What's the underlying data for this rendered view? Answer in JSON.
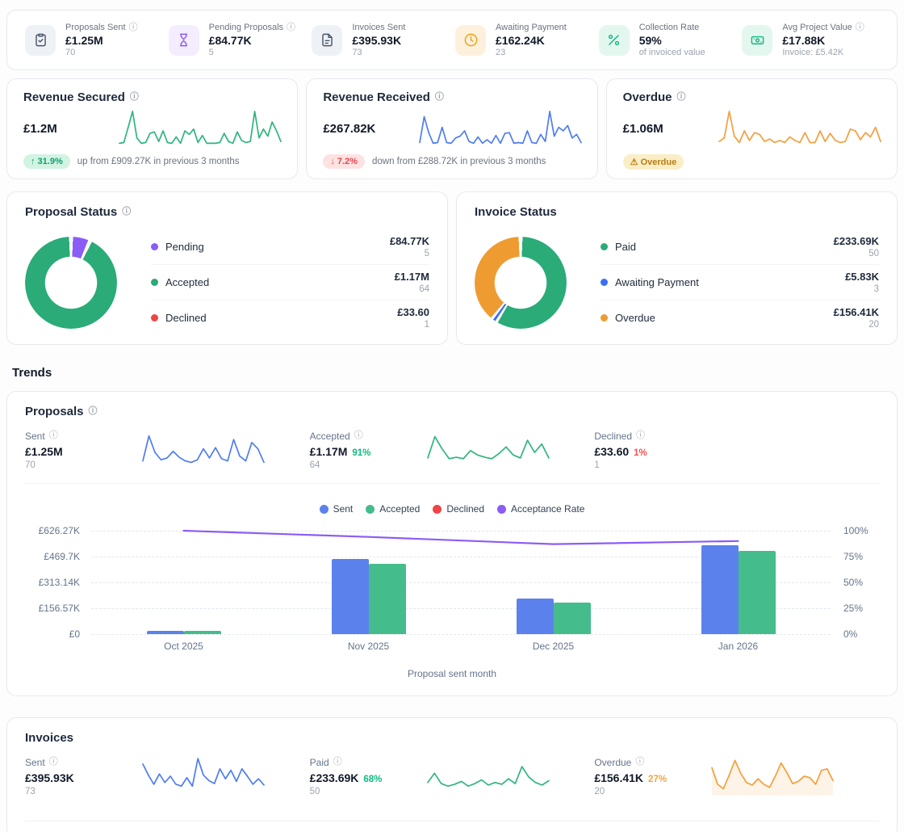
{
  "stats": [
    {
      "label": "Proposals Sent",
      "has_info": true,
      "value": "£1.25M",
      "sub": "70",
      "icon": "clipboard-check-icon",
      "icon_color": "#475569",
      "icon_bg": "#eef2f6"
    },
    {
      "label": "Pending Proposals",
      "has_info": true,
      "value": "£84.77K",
      "sub": "5",
      "icon": "hourglass-icon",
      "icon_color": "#8b5cf6",
      "icon_bg": "#f4edfe"
    },
    {
      "label": "Invoices Sent",
      "has_info": false,
      "value": "£395.93K",
      "sub": "73",
      "icon": "file-icon",
      "icon_color": "#475569",
      "icon_bg": "#eef2f6"
    },
    {
      "label": "Awaiting Payment",
      "has_info": false,
      "value": "£162.24K",
      "sub": "23",
      "icon": "clock-icon",
      "icon_color": "#f59e0b",
      "icon_bg": "#fdf1dd"
    },
    {
      "label": "Collection Rate",
      "has_info": false,
      "value": "59%",
      "sub": "of invoiced value",
      "icon": "percent-icon",
      "icon_color": "#10b981",
      "icon_bg": "#e3f7ef"
    },
    {
      "label": "Avg Project Value",
      "has_info": true,
      "value": "£17.88K",
      "sub": "Invoice: £5.42K",
      "icon": "banknote-icon",
      "icon_color": "#10b981",
      "icon_bg": "#e3f7ef"
    }
  ],
  "revenue_cards": [
    {
      "title": "Revenue Secured",
      "value": "£1.2M",
      "badge": {
        "text": "↑ 31.9%",
        "type": "up"
      },
      "note": "up from £909.27K in previous 3 months",
      "spark": "rev_secured"
    },
    {
      "title": "Revenue Received",
      "value": "£267.82K",
      "badge": {
        "text": "↓ 7.2%",
        "type": "down"
      },
      "note": "down from £288.72K in previous 3 months",
      "spark": "rev_received"
    },
    {
      "title": "Overdue",
      "value": "£1.06M",
      "badge": {
        "text": "⚠ Overdue",
        "type": "warn"
      },
      "note": "",
      "spark": "overdue"
    }
  ],
  "status_cards": [
    {
      "title": "Proposal Status",
      "has_info": true,
      "segments": [
        {
          "label": "Pending",
          "color": "#8b5cf6",
          "value": "£84.77K",
          "count": "5",
          "pct": 6.8
        },
        {
          "label": "Accepted",
          "color": "#2aab77",
          "value": "£1.17M",
          "count": "64",
          "pct": 93.2
        },
        {
          "label": "Declined",
          "color": "#ef4444",
          "value": "£33.60",
          "count": "1",
          "pct": 0
        }
      ]
    },
    {
      "title": "Invoice Status",
      "has_info": false,
      "segments": [
        {
          "label": "Paid",
          "color": "#2aab77",
          "value": "£233.69K",
          "count": "50",
          "pct": 59
        },
        {
          "label": "Awaiting Payment",
          "color": "#3b6ef6",
          "value": "£5.83K",
          "count": "3",
          "pct": 1.5
        },
        {
          "label": "Overdue",
          "color": "#ee9b31",
          "value": "£156.41K",
          "count": "20",
          "pct": 39.5
        }
      ]
    }
  ],
  "trends": {
    "heading": "Trends",
    "proposals": {
      "title": "Proposals",
      "stats": [
        {
          "label": "Sent",
          "value": "£1.25M",
          "pct": "",
          "pct_tone": "",
          "count": "70",
          "spark": "prop_sent"
        },
        {
          "label": "Accepted",
          "value": "£1.17M",
          "pct": "91%",
          "pct_tone": "green",
          "count": "64",
          "spark": "prop_accepted"
        },
        {
          "label": "Declined",
          "value": "£33.60",
          "pct": "1%",
          "pct_tone": "red",
          "count": "1",
          "spark": ""
        }
      ]
    },
    "invoices": {
      "title": "Invoices",
      "stats": [
        {
          "label": "Sent",
          "value": "£395.93K",
          "pct": "",
          "pct_tone": "",
          "count": "73",
          "spark": "inv_sent"
        },
        {
          "label": "Paid",
          "value": "£233.69K",
          "pct": "68%",
          "pct_tone": "green",
          "count": "50",
          "spark": "inv_paid"
        },
        {
          "label": "Overdue",
          "value": "£156.41K",
          "pct": "27%",
          "pct_tone": "orange",
          "count": "20",
          "spark": "inv_overdue"
        }
      ]
    }
  },
  "chart_data": {
    "type": "bar",
    "categories": [
      "Oct 2025",
      "Nov 2025",
      "Dec 2025",
      "Jan 2026"
    ],
    "series": [
      {
        "name": "Sent",
        "color": "#5b82ec",
        "values": [
          20500,
          457000,
          214000,
          540000
        ]
      },
      {
        "name": "Accepted",
        "color": "#45bc8b",
        "values": [
          18000,
          428000,
          191000,
          506000
        ]
      },
      {
        "name": "Declined",
        "color": "#ef4444",
        "values": [
          34,
          0,
          0,
          0
        ]
      },
      {
        "name": "Acceptance Rate",
        "color": "#8b5cf6",
        "axis": "right",
        "values": [
          100,
          94,
          87,
          90
        ]
      }
    ],
    "legend": [
      "Sent",
      "Accepted",
      "Declined",
      "Acceptance Rate"
    ],
    "left_ticks": [
      "£626.27K",
      "£469.7K",
      "£313.14K",
      "£156.57K",
      "£0"
    ],
    "right_ticks": [
      "100%",
      "75%",
      "50%",
      "25%",
      "0%"
    ],
    "ylim": [
      0,
      626270
    ],
    "ylim_right": [
      0,
      100
    ],
    "xlabel": "Proposal sent month",
    "grid": true,
    "legend_position": "top-center"
  },
  "sparklines": {
    "rev_secured": {
      "color": "#2eb57d",
      "points": [
        0.1,
        0.12,
        0.55,
        1.0,
        0.25,
        0.1,
        0.12,
        0.38,
        0.42,
        0.15,
        0.45,
        0.12,
        0.1,
        0.28,
        0.1,
        0.45,
        0.35,
        0.5,
        0.12,
        0.32,
        0.1,
        0.1,
        0.1,
        0.12,
        0.38,
        0.15,
        0.1,
        0.42,
        0.18,
        0.12,
        0.15,
        1.0,
        0.25,
        0.5,
        0.3,
        0.7,
        0.45,
        0.15
      ]
    },
    "rev_received": {
      "color": "#4f7cf0",
      "points": [
        0.12,
        0.85,
        0.4,
        0.1,
        0.12,
        0.55,
        0.12,
        0.1,
        0.25,
        0.3,
        0.45,
        0.15,
        0.1,
        0.28,
        0.1,
        0.2,
        0.1,
        0.32,
        0.1,
        0.38,
        0.4,
        0.1,
        0.12,
        0.1,
        0.45,
        0.12,
        0.1,
        0.35,
        0.15,
        1.0,
        0.3,
        0.55,
        0.45,
        0.6,
        0.25,
        0.35,
        0.12
      ]
    },
    "overdue": {
      "color": "#f59e3c",
      "points": [
        0.15,
        0.25,
        1.0,
        0.3,
        0.12,
        0.45,
        0.18,
        0.4,
        0.35,
        0.15,
        0.22,
        0.12,
        0.18,
        0.12,
        0.28,
        0.18,
        0.12,
        0.4,
        0.12,
        0.12,
        0.45,
        0.15,
        0.38,
        0.18,
        0.12,
        0.15,
        0.5,
        0.45,
        0.2,
        0.4,
        0.28,
        0.55,
        0.15
      ]
    },
    "prop_sent": {
      "color": "#4f7cf0",
      "points": [
        0.22,
        0.9,
        0.45,
        0.25,
        0.3,
        0.48,
        0.32,
        0.22,
        0.18,
        0.25,
        0.55,
        0.3,
        0.58,
        0.28,
        0.22,
        0.8,
        0.35,
        0.22,
        0.72,
        0.55,
        0.18
      ]
    },
    "prop_accepted": {
      "color": "#2eb57d",
      "points": [
        0.3,
        0.88,
        0.55,
        0.28,
        0.32,
        0.28,
        0.5,
        0.38,
        0.32,
        0.28,
        0.42,
        0.6,
        0.38,
        0.3,
        0.78,
        0.45,
        0.68,
        0.3
      ]
    },
    "inv_sent": {
      "color": "#4f7cf0",
      "points": [
        0.85,
        0.55,
        0.3,
        0.58,
        0.35,
        0.52,
        0.3,
        0.25,
        0.48,
        0.25,
        1.0,
        0.55,
        0.4,
        0.32,
        0.72,
        0.45,
        0.68,
        0.38,
        0.72,
        0.52,
        0.3,
        0.45,
        0.28
      ]
    },
    "inv_paid": {
      "color": "#2eb57d",
      "points": [
        0.35,
        0.6,
        0.32,
        0.25,
        0.3,
        0.38,
        0.25,
        0.32,
        0.42,
        0.28,
        0.35,
        0.3,
        0.45,
        0.32,
        0.78,
        0.5,
        0.35,
        0.28,
        0.4
      ]
    },
    "inv_overdue": {
      "color": "#f59e3c",
      "fill": true,
      "points": [
        0.75,
        0.3,
        0.18,
        0.55,
        0.95,
        0.6,
        0.35,
        0.28,
        0.45,
        0.3,
        0.22,
        0.52,
        0.88,
        0.62,
        0.32,
        0.38,
        0.52,
        0.48,
        0.3,
        0.68,
        0.72,
        0.4
      ]
    }
  }
}
